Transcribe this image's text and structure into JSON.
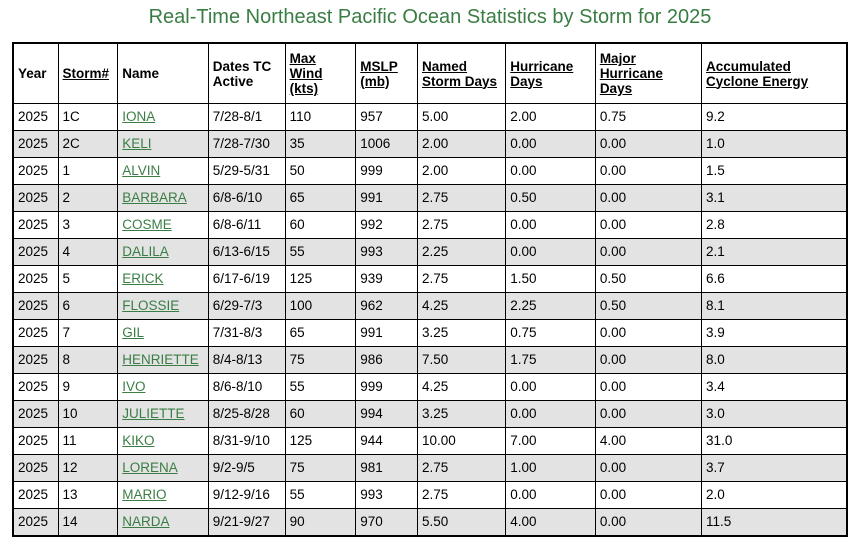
{
  "page": {
    "title": "Real-Time Northeast Pacific Ocean Statistics by Storm for 2025"
  },
  "colors": {
    "title": "#3a7d44",
    "link": "#3a7d44",
    "row_alt": "#e3e3e3",
    "border": "#000000"
  },
  "table": {
    "headers": {
      "year": "Year",
      "storm_num": "Storm#",
      "name": "Name",
      "dates": "Dates TC Active",
      "max_wind": "Max Wind (kts)",
      "mslp": "MSLP (mb)",
      "named_storm_days": "Named Storm Days",
      "hurricane_days": "Hurricane Days",
      "major_hurricane_days": "Major Hurricane Days",
      "ace": "Accumulated Cyclone Energy"
    },
    "rows": [
      {
        "year": "2025",
        "num": "1C",
        "name": "IONA",
        "dates": "7/28-8/1",
        "wind": "110",
        "mslp": "957",
        "nsd": "5.00",
        "hd": "2.00",
        "mhd": "0.75",
        "ace": "9.2"
      },
      {
        "year": "2025",
        "num": "2C",
        "name": "KELI",
        "dates": "7/28-7/30",
        "wind": "35",
        "mslp": "1006",
        "nsd": "2.00",
        "hd": "0.00",
        "mhd": "0.00",
        "ace": "1.0"
      },
      {
        "year": "2025",
        "num": "1",
        "name": "ALVIN",
        "dates": "5/29-5/31",
        "wind": "50",
        "mslp": "999",
        "nsd": "2.00",
        "hd": "0.00",
        "mhd": "0.00",
        "ace": "1.5"
      },
      {
        "year": "2025",
        "num": "2",
        "name": "BARBARA",
        "dates": "6/8-6/10",
        "wind": "65",
        "mslp": "991",
        "nsd": "2.75",
        "hd": "0.50",
        "mhd": "0.00",
        "ace": "3.1"
      },
      {
        "year": "2025",
        "num": "3",
        "name": "COSME",
        "dates": "6/8-6/11",
        "wind": "60",
        "mslp": "992",
        "nsd": "2.75",
        "hd": "0.00",
        "mhd": "0.00",
        "ace": "2.8"
      },
      {
        "year": "2025",
        "num": "4",
        "name": "DALILA",
        "dates": "6/13-6/15",
        "wind": "55",
        "mslp": "993",
        "nsd": "2.25",
        "hd": "0.00",
        "mhd": "0.00",
        "ace": "2.1"
      },
      {
        "year": "2025",
        "num": "5",
        "name": "ERICK",
        "dates": "6/17-6/19",
        "wind": "125",
        "mslp": "939",
        "nsd": "2.75",
        "hd": "1.50",
        "mhd": "0.50",
        "ace": "6.6"
      },
      {
        "year": "2025",
        "num": "6",
        "name": "FLOSSIE",
        "dates": "6/29-7/3",
        "wind": "100",
        "mslp": "962",
        "nsd": "4.25",
        "hd": "2.25",
        "mhd": "0.50",
        "ace": "8.1"
      },
      {
        "year": "2025",
        "num": "7",
        "name": "GIL",
        "dates": "7/31-8/3",
        "wind": "65",
        "mslp": "991",
        "nsd": "3.25",
        "hd": "0.75",
        "mhd": "0.00",
        "ace": "3.9"
      },
      {
        "year": "2025",
        "num": "8",
        "name": "HENRIETTE",
        "dates": "8/4-8/13",
        "wind": "75",
        "mslp": "986",
        "nsd": "7.50",
        "hd": "1.75",
        "mhd": "0.00",
        "ace": "8.0"
      },
      {
        "year": "2025",
        "num": "9",
        "name": "IVO",
        "dates": "8/6-8/10",
        "wind": "55",
        "mslp": "999",
        "nsd": "4.25",
        "hd": "0.00",
        "mhd": "0.00",
        "ace": "3.4"
      },
      {
        "year": "2025",
        "num": "10",
        "name": "JULIETTE",
        "dates": "8/25-8/28",
        "wind": "60",
        "mslp": "994",
        "nsd": "3.25",
        "hd": "0.00",
        "mhd": "0.00",
        "ace": "3.0"
      },
      {
        "year": "2025",
        "num": "11",
        "name": "KIKO",
        "dates": "8/31-9/10",
        "wind": "125",
        "mslp": "944",
        "nsd": "10.00",
        "hd": "7.00",
        "mhd": "4.00",
        "ace": "31.0"
      },
      {
        "year": "2025",
        "num": "12",
        "name": "LORENA",
        "dates": "9/2-9/5",
        "wind": "75",
        "mslp": "981",
        "nsd": "2.75",
        "hd": "1.00",
        "mhd": "0.00",
        "ace": "3.7"
      },
      {
        "year": "2025",
        "num": "13",
        "name": "MARIO",
        "dates": "9/12-9/16",
        "wind": "55",
        "mslp": "993",
        "nsd": "2.75",
        "hd": "0.00",
        "mhd": "0.00",
        "ace": "2.0"
      },
      {
        "year": "2025",
        "num": "14",
        "name": "NARDA",
        "dates": "9/21-9/27",
        "wind": "90",
        "mslp": "970",
        "nsd": "5.50",
        "hd": "4.00",
        "mhd": "0.00",
        "ace": "11.5"
      }
    ]
  }
}
